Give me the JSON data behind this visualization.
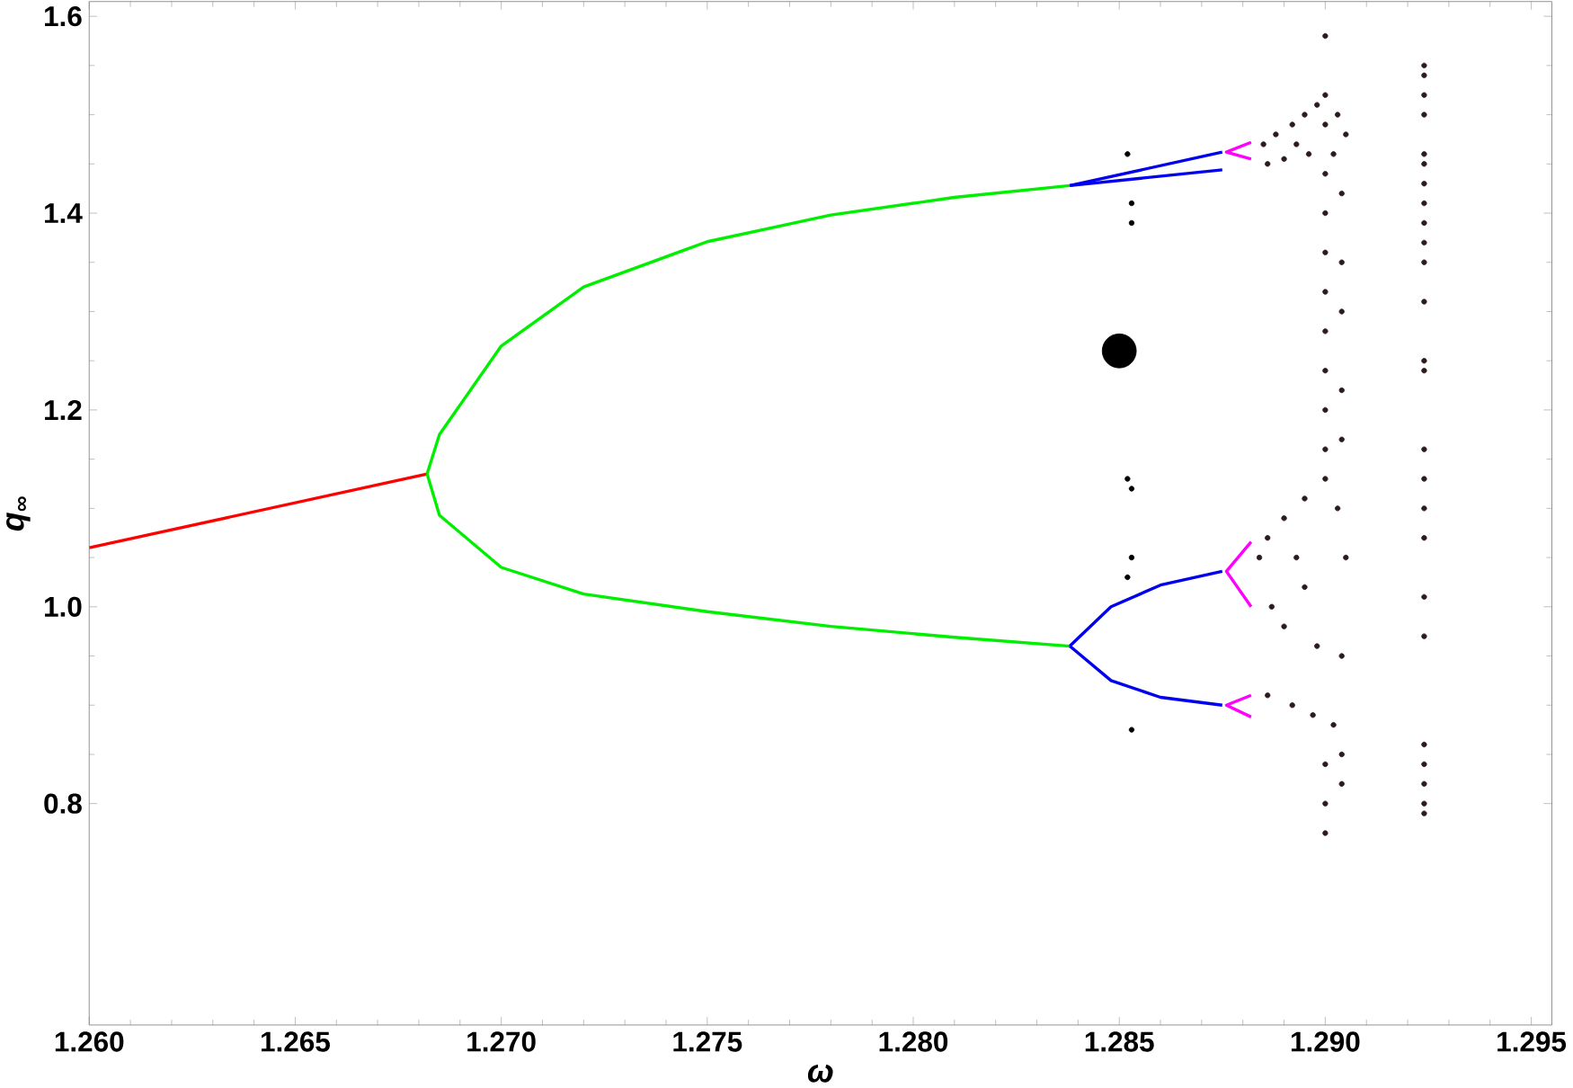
{
  "chart_data": {
    "type": "line",
    "xlabel": "ω",
    "ylabel": "q$_{∞}$",
    "xlim": [
      1.26,
      1.2955
    ],
    "ylim": [
      0.575,
      1.615
    ],
    "xticks": [
      {
        "value": 1.26,
        "label": "1.260"
      },
      {
        "value": 1.265,
        "label": "1.265"
      },
      {
        "value": 1.27,
        "label": "1.270"
      },
      {
        "value": 1.275,
        "label": "1.275"
      },
      {
        "value": 1.28,
        "label": "1.280"
      },
      {
        "value": 1.285,
        "label": "1.285"
      },
      {
        "value": 1.29,
        "label": "1.290"
      },
      {
        "value": 1.295,
        "label": "1.295"
      }
    ],
    "yticks": [
      0.8,
      {
        "value": 1.0,
        "label": "1.0"
      },
      1.2,
      1.4,
      1.6
    ],
    "grid": false,
    "series": [
      {
        "color": "#ff0000",
        "x": [
          1.26,
          1.2682
        ],
        "values": [
          1.06,
          1.135
        ]
      },
      {
        "color": "#00ee00",
        "x": [
          1.2682,
          1.2685,
          1.27,
          1.272,
          1.275,
          1.278,
          1.281,
          1.2838
        ],
        "values": [
          1.135,
          1.175,
          1.265,
          1.325,
          1.371,
          1.398,
          1.416,
          1.428
        ]
      },
      {
        "color": "#00ee00",
        "x": [
          1.2682,
          1.2685,
          1.27,
          1.272,
          1.275,
          1.278,
          1.281,
          1.2838
        ],
        "values": [
          1.135,
          1.093,
          1.04,
          1.013,
          0.995,
          0.98,
          0.969,
          0.96
        ]
      },
      {
        "color": "#0000ee",
        "x": [
          1.2838,
          1.2875
        ],
        "values": [
          1.428,
          1.462
        ]
      },
      {
        "color": "#0000ee",
        "x": [
          1.2838,
          1.2875
        ],
        "values": [
          1.428,
          1.444
        ]
      },
      {
        "color": "#0000ee",
        "x": [
          1.2838,
          1.2848,
          1.286,
          1.2875
        ],
        "values": [
          0.96,
          1.0,
          1.022,
          1.036
        ]
      },
      {
        "color": "#0000ee",
        "x": [
          1.2838,
          1.2848,
          1.286,
          1.2875
        ],
        "values": [
          0.96,
          0.925,
          0.908,
          0.9
        ]
      },
      {
        "color": "#ff00ff",
        "x": [
          1.2882,
          1.2876,
          1.2882
        ],
        "values": [
          1.472,
          1.462,
          1.455
        ]
      },
      {
        "color": "#ff00ff",
        "x": [
          1.2882,
          1.2876,
          1.2882
        ],
        "values": [
          1.066,
          1.036,
          1.0
        ]
      },
      {
        "color": "#ff00ff",
        "x": [
          1.2882,
          1.2876,
          1.2882
        ],
        "values": [
          0.91,
          0.9,
          0.888
        ]
      },
      {
        "type": "scatter",
        "color": "#2d1a1a",
        "x": [
          1.2885,
          1.2888,
          1.2892,
          1.2895,
          1.2898,
          1.29,
          1.2903,
          1.2905,
          1.2902,
          1.2896,
          1.289,
          1.2886,
          1.2893,
          1.29,
          1.2884,
          1.2886,
          1.289,
          1.2895,
          1.29,
          1.2903,
          1.2905,
          1.2904,
          1.2902,
          1.2897,
          1.2892,
          1.2886,
          1.289,
          1.2895,
          1.2898,
          1.2893,
          1.2887,
          1.29,
          1.29,
          1.29,
          1.29,
          1.29,
          1.29,
          1.29,
          1.29,
          1.29,
          1.29,
          1.29,
          1.29,
          1.2904,
          1.2904,
          1.2904,
          1.2904,
          1.2904,
          1.2904,
          1.2904
        ],
        "values": [
          1.47,
          1.48,
          1.49,
          1.5,
          1.51,
          1.52,
          1.5,
          1.48,
          1.46,
          1.46,
          1.455,
          1.45,
          1.47,
          1.49,
          1.05,
          1.07,
          1.09,
          1.11,
          1.13,
          1.1,
          1.05,
          0.95,
          0.88,
          0.89,
          0.9,
          0.91,
          0.98,
          1.02,
          0.96,
          1.05,
          1.0,
          1.58,
          1.44,
          1.4,
          1.36,
          1.32,
          1.28,
          1.24,
          1.2,
          1.16,
          0.84,
          0.8,
          0.77,
          1.42,
          1.35,
          1.3,
          1.22,
          1.17,
          0.82,
          0.85
        ]
      },
      {
        "type": "scatter",
        "color": "#2d1a1a",
        "x": [
          1.2924,
          1.2924,
          1.2924,
          1.2924,
          1.2924,
          1.2924,
          1.2924,
          1.2924,
          1.2924,
          1.2924,
          1.2924,
          1.2924,
          1.2924,
          1.2924,
          1.2924,
          1.2924,
          1.2924,
          1.2924,
          1.2924,
          1.2924,
          1.2924,
          1.2924,
          1.2924,
          1.2924,
          1.2924
        ],
        "values": [
          1.55,
          1.54,
          1.52,
          1.5,
          1.46,
          1.45,
          1.43,
          1.41,
          1.39,
          1.37,
          1.35,
          1.31,
          1.25,
          1.24,
          1.16,
          1.13,
          1.1,
          1.07,
          1.01,
          0.97,
          0.86,
          0.84,
          0.82,
          0.8,
          0.79
        ]
      },
      {
        "type": "scatter",
        "color": "#000000",
        "x": [
          1.2852,
          1.2853,
          1.2853,
          1.2852,
          1.2853,
          1.2853,
          1.2852,
          1.2853
        ],
        "values": [
          1.46,
          1.41,
          1.39,
          1.13,
          1.12,
          1.05,
          1.03,
          0.875
        ]
      },
      {
        "type": "bubble",
        "color": "#000000",
        "x": [
          1.285
        ],
        "values": [
          1.26
        ],
        "sizes": [
          1
        ]
      }
    ]
  }
}
